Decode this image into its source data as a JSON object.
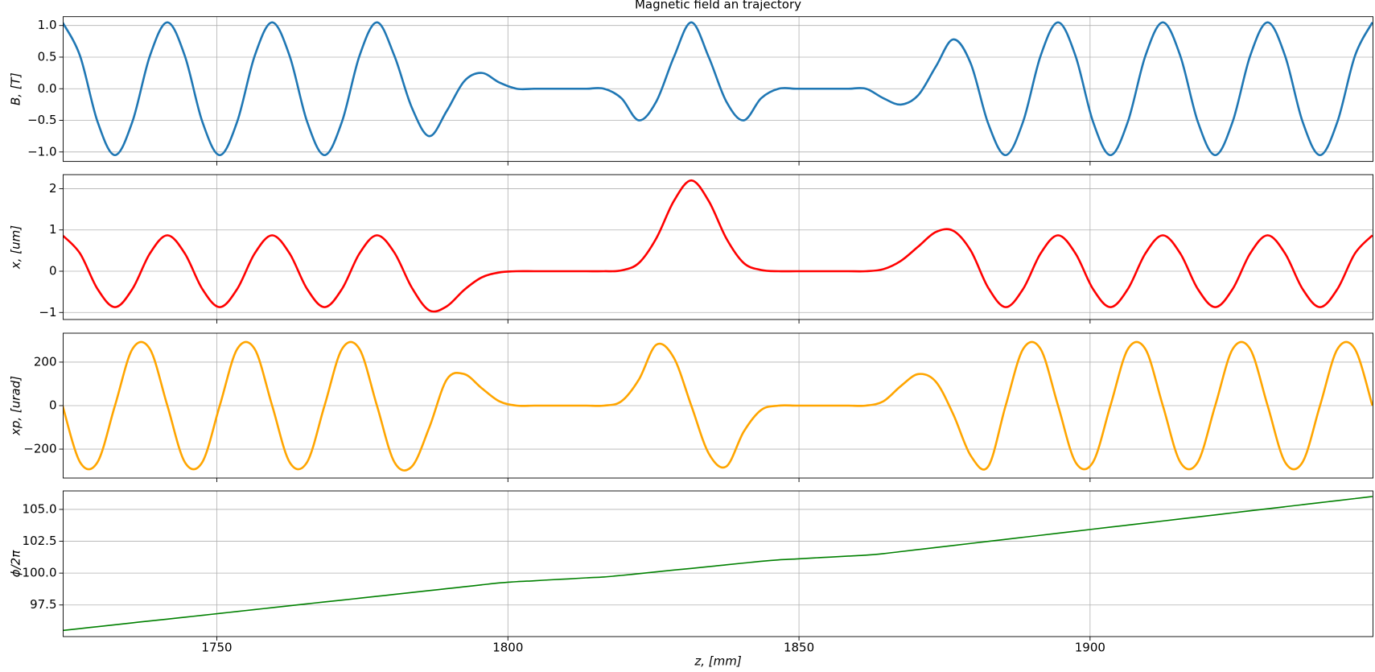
{
  "chart_data": [
    {
      "type": "line",
      "title": "Magnetic field an trajectory",
      "ylabel": "B, [T]",
      "color": "#1f77b4",
      "ylim": [
        -1.15,
        1.14
      ],
      "yticks": [
        {
          "value": -1.0,
          "label": "−1.0"
        },
        {
          "value": -0.5,
          "label": "−0.5"
        },
        {
          "value": 0.0,
          "label": "0.0"
        },
        {
          "value": 0.5,
          "label": "0.5"
        },
        {
          "value": 1.0,
          "label": "1.0"
        }
      ],
      "grid": true,
      "values": [
        1.05,
        0.52,
        -0.52,
        -1.05,
        -0.52,
        0.52,
        1.05,
        0.52,
        -0.52,
        -1.05,
        -0.52,
        0.52,
        1.05,
        0.52,
        -0.52,
        -1.05,
        -0.52,
        0.52,
        1.05,
        0.52,
        -0.3,
        -0.75,
        -0.35,
        0.12,
        0.25,
        0.1,
        0,
        0,
        0,
        0,
        0,
        0,
        -0.15,
        -0.5,
        -0.2,
        0.5,
        1.05,
        0.5,
        -0.2,
        -0.5,
        -0.15,
        0,
        0,
        0,
        0,
        0,
        0,
        -0.15,
        -0.25,
        -0.1,
        0.35,
        0.78,
        0.4,
        -0.55,
        -1.05,
        -0.52,
        0.52,
        1.05,
        0.52,
        -0.52,
        -1.05,
        -0.52,
        0.52,
        1.05,
        0.52,
        -0.52,
        -1.05,
        -0.52,
        0.52,
        1.05,
        0.52,
        -0.52,
        -1.05,
        -0.52,
        0.52,
        1.05
      ]
    },
    {
      "type": "line",
      "ylabel": "x, [um]",
      "color": "#ff0000",
      "ylim": [
        -1.17,
        2.34
      ],
      "yticks": [
        {
          "value": -1,
          "label": "−1"
        },
        0,
        1,
        2
      ],
      "grid": true,
      "values": [
        0.87,
        0.43,
        -0.43,
        -0.87,
        -0.43,
        0.43,
        0.87,
        0.43,
        -0.43,
        -0.87,
        -0.43,
        0.43,
        0.87,
        0.43,
        -0.43,
        -0.87,
        -0.43,
        0.43,
        0.87,
        0.45,
        -0.4,
        -0.95,
        -0.85,
        -0.45,
        -0.15,
        -0.03,
        0,
        0,
        0,
        0,
        0,
        0,
        0.02,
        0.2,
        0.8,
        1.7,
        2.2,
        1.7,
        0.8,
        0.2,
        0.03,
        0,
        0,
        0,
        0,
        0,
        0,
        0.05,
        0.25,
        0.6,
        0.95,
        0.98,
        0.5,
        -0.4,
        -0.87,
        -0.43,
        0.43,
        0.87,
        0.43,
        -0.43,
        -0.87,
        -0.43,
        0.43,
        0.87,
        0.43,
        -0.43,
        -0.87,
        -0.43,
        0.43,
        0.87,
        0.43,
        -0.43,
        -0.87,
        -0.43,
        0.43,
        0.87
      ]
    },
    {
      "type": "line",
      "ylabel": "xp, [urad]",
      "color": "#ffa500",
      "ylim": [
        -333,
        333
      ],
      "yticks": [
        {
          "value": -200,
          "label": "−200"
        },
        0,
        200
      ],
      "grid": true,
      "values": [
        0,
        -260,
        -260,
        0,
        260,
        260,
        0,
        -260,
        -260,
        0,
        260,
        260,
        0,
        -260,
        -260,
        0,
        260,
        260,
        0,
        -260,
        -280,
        -100,
        120,
        145,
        80,
        20,
        0,
        0,
        0,
        0,
        0,
        0,
        20,
        120,
        280,
        220,
        0,
        -220,
        -280,
        -120,
        -20,
        0,
        0,
        0,
        0,
        0,
        0,
        20,
        90,
        145,
        110,
        -40,
        -230,
        -280,
        0,
        260,
        260,
        0,
        -260,
        -260,
        0,
        260,
        260,
        0,
        -260,
        -260,
        0,
        260,
        260,
        0,
        -260,
        -260,
        0,
        260,
        260,
        0
      ]
    },
    {
      "type": "line",
      "ylabel": "ϕ/2π",
      "xlabel": "z, [mm]",
      "color": "#008000",
      "ylim": [
        95.02,
        106.45
      ],
      "yticks": [
        97.5,
        {
          "value": 100.0,
          "label": "100.0"
        },
        102.5,
        {
          "value": 105.0,
          "label": "105.0"
        }
      ],
      "grid": true,
      "xlim": [
        1723.6,
        1948.6
      ],
      "xticks": [
        1750,
        1800,
        1850,
        1900
      ],
      "x": [
        1723.5,
        1726.5,
        1729.5,
        1732.5,
        1735.5,
        1738.5,
        1741.5,
        1744.5,
        1747.5,
        1750.5,
        1753.5,
        1756.5,
        1759.5,
        1762.5,
        1765.5,
        1768.5,
        1771.5,
        1774.5,
        1777.5,
        1780.5,
        1783.5,
        1786.5,
        1789.5,
        1792.5,
        1795.5,
        1798.5,
        1801.5,
        1804.5,
        1807.5,
        1810.5,
        1813.5,
        1816.5,
        1819.5,
        1822.5,
        1825.5,
        1828.5,
        1831.5,
        1834.5,
        1837.5,
        1840.5,
        1843.5,
        1846.5,
        1849.5,
        1852.5,
        1855.5,
        1858.5,
        1861.5,
        1864.5,
        1867.5,
        1870.5,
        1873.5,
        1876.5,
        1879.5,
        1882.5,
        1885.5,
        1888.5,
        1891.5,
        1894.5,
        1897.5,
        1900.5,
        1903.5,
        1906.5,
        1909.5,
        1912.5,
        1915.5,
        1918.5,
        1921.5,
        1924.5,
        1927.5,
        1930.5,
        1933.5,
        1936.5,
        1939.5,
        1942.5,
        1945.5,
        1948.5
      ],
      "values": [
        95.5,
        95.65,
        95.8,
        95.95,
        96.1,
        96.25,
        96.39,
        96.54,
        96.69,
        96.84,
        96.99,
        97.14,
        97.29,
        97.44,
        97.59,
        97.74,
        97.88,
        98.03,
        98.18,
        98.33,
        98.48,
        98.63,
        98.78,
        98.93,
        99.08,
        99.23,
        99.33,
        99.4,
        99.48,
        99.55,
        99.63,
        99.7,
        99.82,
        99.96,
        100.1,
        100.24,
        100.37,
        100.51,
        100.65,
        100.79,
        100.93,
        101.04,
        101.11,
        101.19,
        101.26,
        101.34,
        101.41,
        101.53,
        101.69,
        101.85,
        102.01,
        102.17,
        102.33,
        102.49,
        102.65,
        102.81,
        102.97,
        103.13,
        103.29,
        103.45,
        103.61,
        103.77,
        103.93,
        104.09,
        104.25,
        104.41,
        104.57,
        104.73,
        104.89,
        105.05,
        105.21,
        105.37,
        105.53,
        105.69,
        105.85,
        106.01
      ]
    }
  ]
}
